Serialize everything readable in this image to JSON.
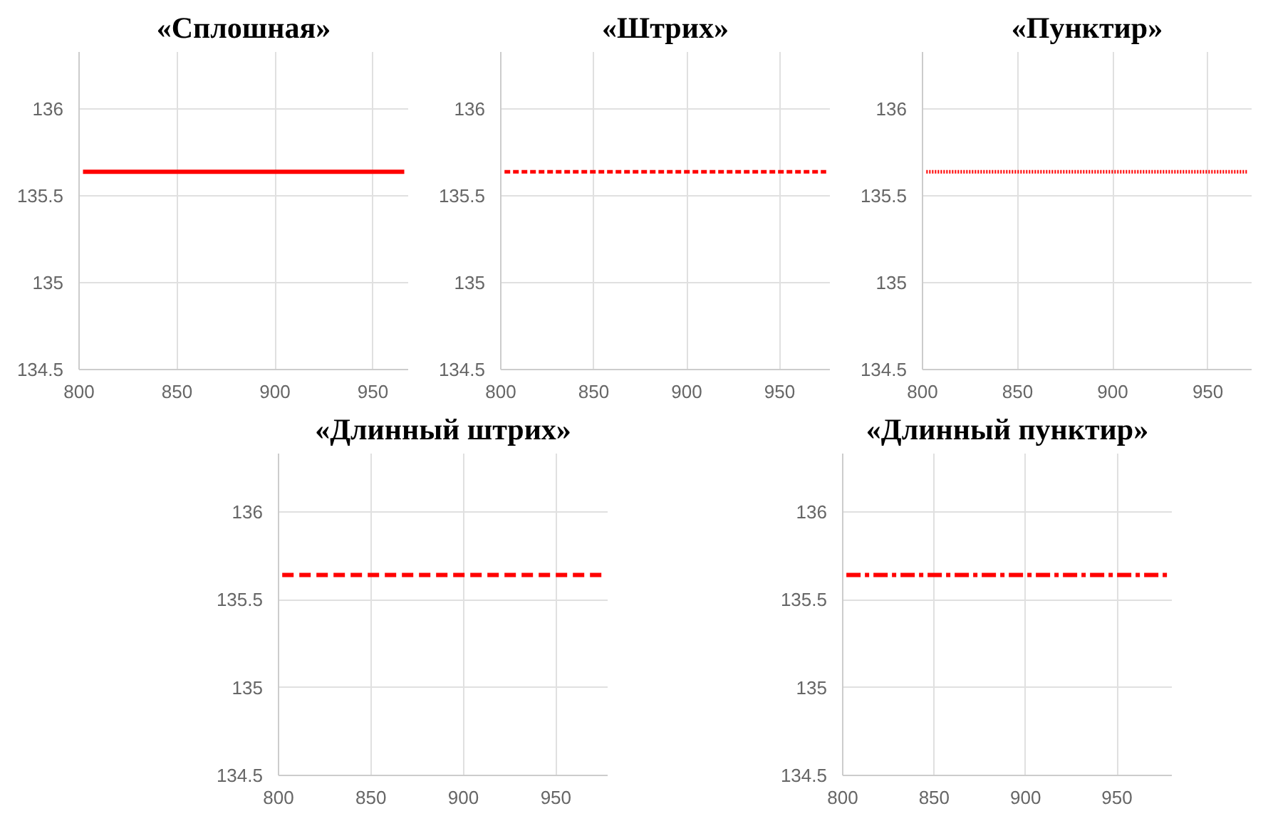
{
  "chart_data": [
    {
      "type": "line",
      "title": "«Сплошная»",
      "x": [
        802,
        966
      ],
      "series": [
        {
          "color": "#ff0000",
          "values": [
            135.64,
            135.64
          ]
        }
      ],
      "xlim": [
        800,
        968
      ],
      "ylim": [
        134.5,
        136.33
      ],
      "xticks": [
        800,
        850,
        900,
        950
      ],
      "yticks": [
        134.5,
        135,
        135.5,
        136
      ],
      "grid": true,
      "line_style": "solid"
    },
    {
      "type": "line",
      "title": "«Штрих»",
      "x": [
        802,
        975
      ],
      "series": [
        {
          "color": "#ff0000",
          "values": [
            135.64,
            135.64
          ]
        }
      ],
      "xlim": [
        800,
        977
      ],
      "ylim": [
        134.5,
        136.33
      ],
      "xticks": [
        800,
        850,
        900,
        950
      ],
      "yticks": [
        134.5,
        135,
        135.5,
        136
      ],
      "grid": true,
      "line_style": "dashed"
    },
    {
      "type": "line",
      "title": "«Пунктир»",
      "x": [
        802,
        971
      ],
      "series": [
        {
          "color": "#ff0000",
          "values": [
            135.64,
            135.64
          ]
        }
      ],
      "xlim": [
        800,
        973
      ],
      "ylim": [
        134.5,
        136.33
      ],
      "xticks": [
        800,
        850,
        900,
        950
      ],
      "yticks": [
        134.5,
        135,
        135.5,
        136
      ],
      "grid": true,
      "line_style": "dotted"
    },
    {
      "type": "line",
      "title": "«Длинный штрих»",
      "x": [
        802,
        976
      ],
      "series": [
        {
          "color": "#ff0000",
          "values": [
            135.64,
            135.64
          ]
        }
      ],
      "xlim": [
        800,
        978
      ],
      "ylim": [
        134.5,
        136.33
      ],
      "xticks": [
        800,
        850,
        900,
        950
      ],
      "yticks": [
        134.5,
        135,
        135.5,
        136
      ],
      "grid": true,
      "line_style": "longdash"
    },
    {
      "type": "line",
      "title": "«Длинный пунктир»",
      "x": [
        802,
        978
      ],
      "series": [
        {
          "color": "#ff0000",
          "values": [
            135.64,
            135.64
          ]
        }
      ],
      "xlim": [
        800,
        980
      ],
      "ylim": [
        134.5,
        136.33
      ],
      "xticks": [
        800,
        850,
        900,
        950
      ],
      "yticks": [
        134.5,
        135,
        135.5,
        136
      ],
      "grid": true,
      "line_style": "dashdot"
    }
  ]
}
